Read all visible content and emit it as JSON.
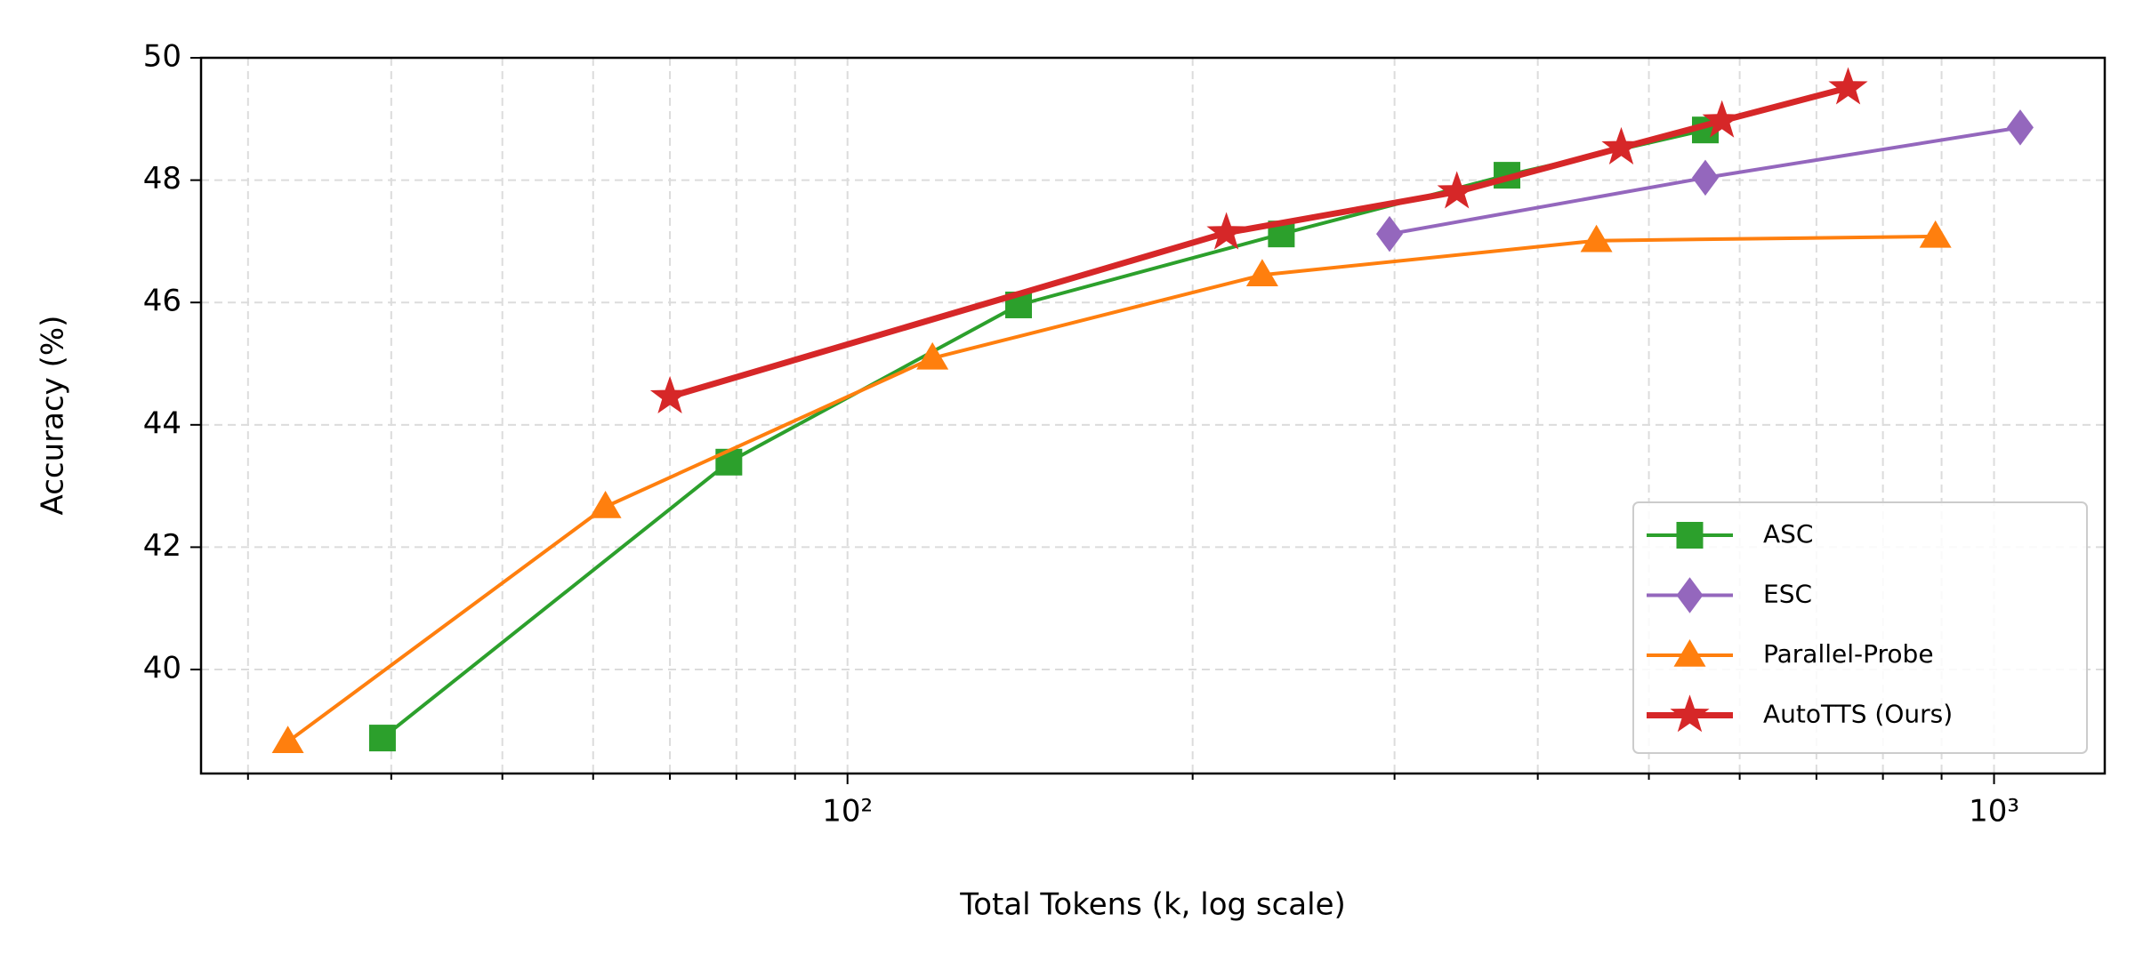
{
  "chart_data": {
    "type": "line",
    "xlabel": "Total Tokens (k, log scale)",
    "ylabel": "Accuracy (%)",
    "xscale": "log",
    "xlim": [
      27.3,
      1249
    ],
    "ylim": [
      38.3,
      50
    ],
    "xticks": [
      {
        "value": 100,
        "label": "10²"
      },
      {
        "value": 1000,
        "label": "10³"
      }
    ],
    "xminor_ticks": [
      30,
      40,
      50,
      60,
      70,
      80,
      90,
      200,
      300,
      400,
      500,
      600,
      700,
      800,
      900
    ],
    "yticks": [
      40,
      42,
      44,
      46,
      48,
      50
    ],
    "grid": true,
    "legend": "lower right",
    "series": [
      {
        "name": "ASC",
        "color": "#2ca02c",
        "marker": "square",
        "x": [
          39.3,
          78.8,
          141,
          239,
          376,
          560
        ],
        "values": [
          38.88,
          43.39,
          45.96,
          47.12,
          48.08,
          48.82
        ]
      },
      {
        "name": "ESC",
        "color": "#9467bd",
        "marker": "diamond",
        "x": [
          297,
          560,
          1054
        ],
        "values": [
          47.12,
          48.04,
          48.86
        ]
      },
      {
        "name": "Parallel-Probe",
        "color": "#ff7f0e",
        "marker": "triangle",
        "x": [
          32.5,
          61.5,
          118.6,
          230,
          450,
          889
        ],
        "values": [
          38.82,
          42.66,
          45.09,
          46.45,
          47.01,
          47.08
        ]
      },
      {
        "name": "AutoTTS (Ours)",
        "color": "#d62728",
        "marker": "star",
        "x": [
          70,
          214,
          340,
          473,
          579,
          746
        ],
        "values": [
          44.46,
          47.14,
          47.81,
          48.53,
          48.97,
          49.51
        ]
      }
    ]
  }
}
